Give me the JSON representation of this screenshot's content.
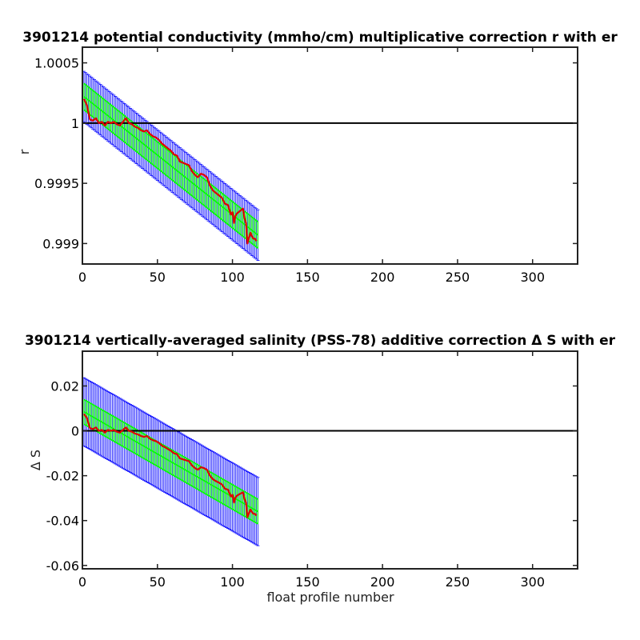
{
  "colors": {
    "background": "#ffffff",
    "axes": "#222222",
    "reference_line": "#000000",
    "error_bars": "#0000ff",
    "fit_band": "#00ff00",
    "correction_line": "#e00000"
  },
  "chart_data": [
    {
      "type": "line",
      "title": "3901214 potential conductivity (mmho/cm) multiplicative correction r with er",
      "xlabel": "",
      "ylabel": "r",
      "xlim": [
        0,
        330
      ],
      "ylim": [
        0.99883,
        1.00063
      ],
      "xticks": [
        0,
        50,
        100,
        150,
        200,
        250,
        300
      ],
      "xtick_labels": [
        "0",
        "50",
        "100",
        "150",
        "200",
        "250",
        "300"
      ],
      "yticks": [
        0.999,
        0.9995,
        1,
        1.0005
      ],
      "ytick_labels": [
        "0.999",
        "0.9995",
        "1",
        "1.0005"
      ],
      "grid": false,
      "reference_value": 1,
      "fit": {
        "x_range": [
          1,
          117
        ],
        "start": 1.00022,
        "end": 0.99907,
        "band_half_width": 0.00011,
        "error_half_width": 0.00021
      },
      "series": [
        {
          "points": [
            [
              1,
              1.0002
            ],
            [
              3,
              1.00015
            ],
            [
              5,
              1.00003
            ],
            [
              7,
              1.00002
            ],
            [
              9,
              1.00004
            ],
            [
              11,
              1.0
            ],
            [
              13,
              1.00001
            ],
            [
              15,
              0.99998
            ],
            [
              17,
              1.00001
            ],
            [
              19,
              1.0
            ],
            [
              21,
              1.00001
            ],
            [
              23,
              0.99999
            ],
            [
              25,
              0.99998
            ],
            [
              27,
              1.00001
            ],
            [
              29,
              1.00004
            ],
            [
              31,
              1.0
            ],
            [
              33,
              0.99999
            ],
            [
              35,
              0.99997
            ],
            [
              37,
              0.99996
            ],
            [
              39,
              0.99994
            ],
            [
              41,
              0.99993
            ],
            [
              43,
              0.99994
            ],
            [
              45,
              0.99991
            ],
            [
              47,
              0.99989
            ],
            [
              49,
              0.99988
            ],
            [
              51,
              0.99986
            ],
            [
              53,
              0.99983
            ],
            [
              55,
              0.99981
            ],
            [
              57,
              0.99979
            ],
            [
              59,
              0.99977
            ],
            [
              61,
              0.99974
            ],
            [
              63,
              0.99973
            ],
            [
              65,
              0.99968
            ],
            [
              67,
              0.99967
            ],
            [
              69,
              0.99966
            ],
            [
              71,
              0.99965
            ],
            [
              73,
              0.9996
            ],
            [
              75,
              0.99957
            ],
            [
              77,
              0.99955
            ],
            [
              79,
              0.99958
            ],
            [
              81,
              0.99957
            ],
            [
              83,
              0.99955
            ],
            [
              85,
              0.99948
            ],
            [
              87,
              0.99944
            ],
            [
              89,
              0.99942
            ],
            [
              91,
              0.9994
            ],
            [
              93,
              0.99938
            ],
            [
              95,
              0.99933
            ],
            [
              97,
              0.99932
            ],
            [
              99,
              0.99924
            ],
            [
              100,
              0.99926
            ],
            [
              101,
              0.99917
            ],
            [
              102,
              0.99923
            ],
            [
              103,
              0.99925
            ],
            [
              105,
              0.99927
            ],
            [
              107,
              0.99929
            ],
            [
              108,
              0.99921
            ],
            [
              109,
              0.99917
            ],
            [
              110,
              0.999
            ],
            [
              111,
              0.99905
            ],
            [
              112,
              0.99909
            ],
            [
              113,
              0.99906
            ],
            [
              114,
              0.99904
            ],
            [
              115,
              0.99904
            ],
            [
              116,
              0.99902
            ]
          ]
        }
      ]
    },
    {
      "type": "line",
      "title": "3901214 vertically-averaged salinity (PSS-78) additive correction Δ S with er",
      "xlabel": "float profile number",
      "ylabel": "Δ S",
      "xlim": [
        0,
        330
      ],
      "ylim": [
        -0.0615,
        0.0355
      ],
      "xticks": [
        0,
        50,
        100,
        150,
        200,
        250,
        300
      ],
      "xtick_labels": [
        "0",
        "50",
        "100",
        "150",
        "200",
        "250",
        "300"
      ],
      "yticks": [
        -0.06,
        -0.04,
        -0.02,
        0,
        0.02
      ],
      "ytick_labels": [
        "-0.06",
        "-0.04",
        "-0.02",
        "0",
        "0.02"
      ],
      "grid": false,
      "reference_value": 0,
      "fit": {
        "x_range": [
          1,
          117
        ],
        "start": 0.0085,
        "end": -0.036,
        "band_half_width": 0.0055,
        "error_half_width": 0.0152
      },
      "series": [
        {
          "points": [
            [
              1,
              0.0075
            ],
            [
              3,
              0.0058
            ],
            [
              5,
              0.0012
            ],
            [
              7,
              0.0008
            ],
            [
              9,
              0.0015
            ],
            [
              11,
              0.0
            ],
            [
              13,
              0.0004
            ],
            [
              15,
              -0.0008
            ],
            [
              17,
              0.0004
            ],
            [
              19,
              0.0
            ],
            [
              21,
              0.0004
            ],
            [
              23,
              -0.0004
            ],
            [
              25,
              -0.0008
            ],
            [
              27,
              0.0004
            ],
            [
              29,
              0.0015
            ],
            [
              31,
              0.0
            ],
            [
              33,
              -0.0004
            ],
            [
              35,
              -0.0012
            ],
            [
              37,
              -0.0016
            ],
            [
              39,
              -0.0023
            ],
            [
              41,
              -0.0027
            ],
            [
              43,
              -0.0023
            ],
            [
              45,
              -0.0035
            ],
            [
              47,
              -0.0042
            ],
            [
              49,
              -0.0046
            ],
            [
              51,
              -0.0054
            ],
            [
              53,
              -0.0066
            ],
            [
              55,
              -0.0073
            ],
            [
              57,
              -0.0081
            ],
            [
              59,
              -0.0089
            ],
            [
              61,
              -0.01
            ],
            [
              63,
              -0.0104
            ],
            [
              65,
              -0.0123
            ],
            [
              67,
              -0.0127
            ],
            [
              69,
              -0.0131
            ],
            [
              71,
              -0.0135
            ],
            [
              73,
              -0.0154
            ],
            [
              75,
              -0.0166
            ],
            [
              77,
              -0.0173
            ],
            [
              79,
              -0.0162
            ],
            [
              81,
              -0.0166
            ],
            [
              83,
              -0.0173
            ],
            [
              85,
              -0.02
            ],
            [
              87,
              -0.0216
            ],
            [
              89,
              -0.0224
            ],
            [
              91,
              -0.0231
            ],
            [
              93,
              -0.0239
            ],
            [
              95,
              -0.0258
            ],
            [
              97,
              -0.0262
            ],
            [
              99,
              -0.0293
            ],
            [
              100,
              -0.0285
            ],
            [
              101,
              -0.032
            ],
            [
              102,
              -0.0297
            ],
            [
              103,
              -0.0289
            ],
            [
              105,
              -0.0281
            ],
            [
              107,
              -0.0274
            ],
            [
              108,
              -0.0304
            ],
            [
              109,
              -0.032
            ],
            [
              110,
              -0.0385
            ],
            [
              111,
              -0.0366
            ],
            [
              112,
              -0.0351
            ],
            [
              113,
              -0.0362
            ],
            [
              114,
              -0.037
            ],
            [
              115,
              -0.037
            ],
            [
              116,
              -0.0378
            ]
          ]
        }
      ]
    }
  ]
}
